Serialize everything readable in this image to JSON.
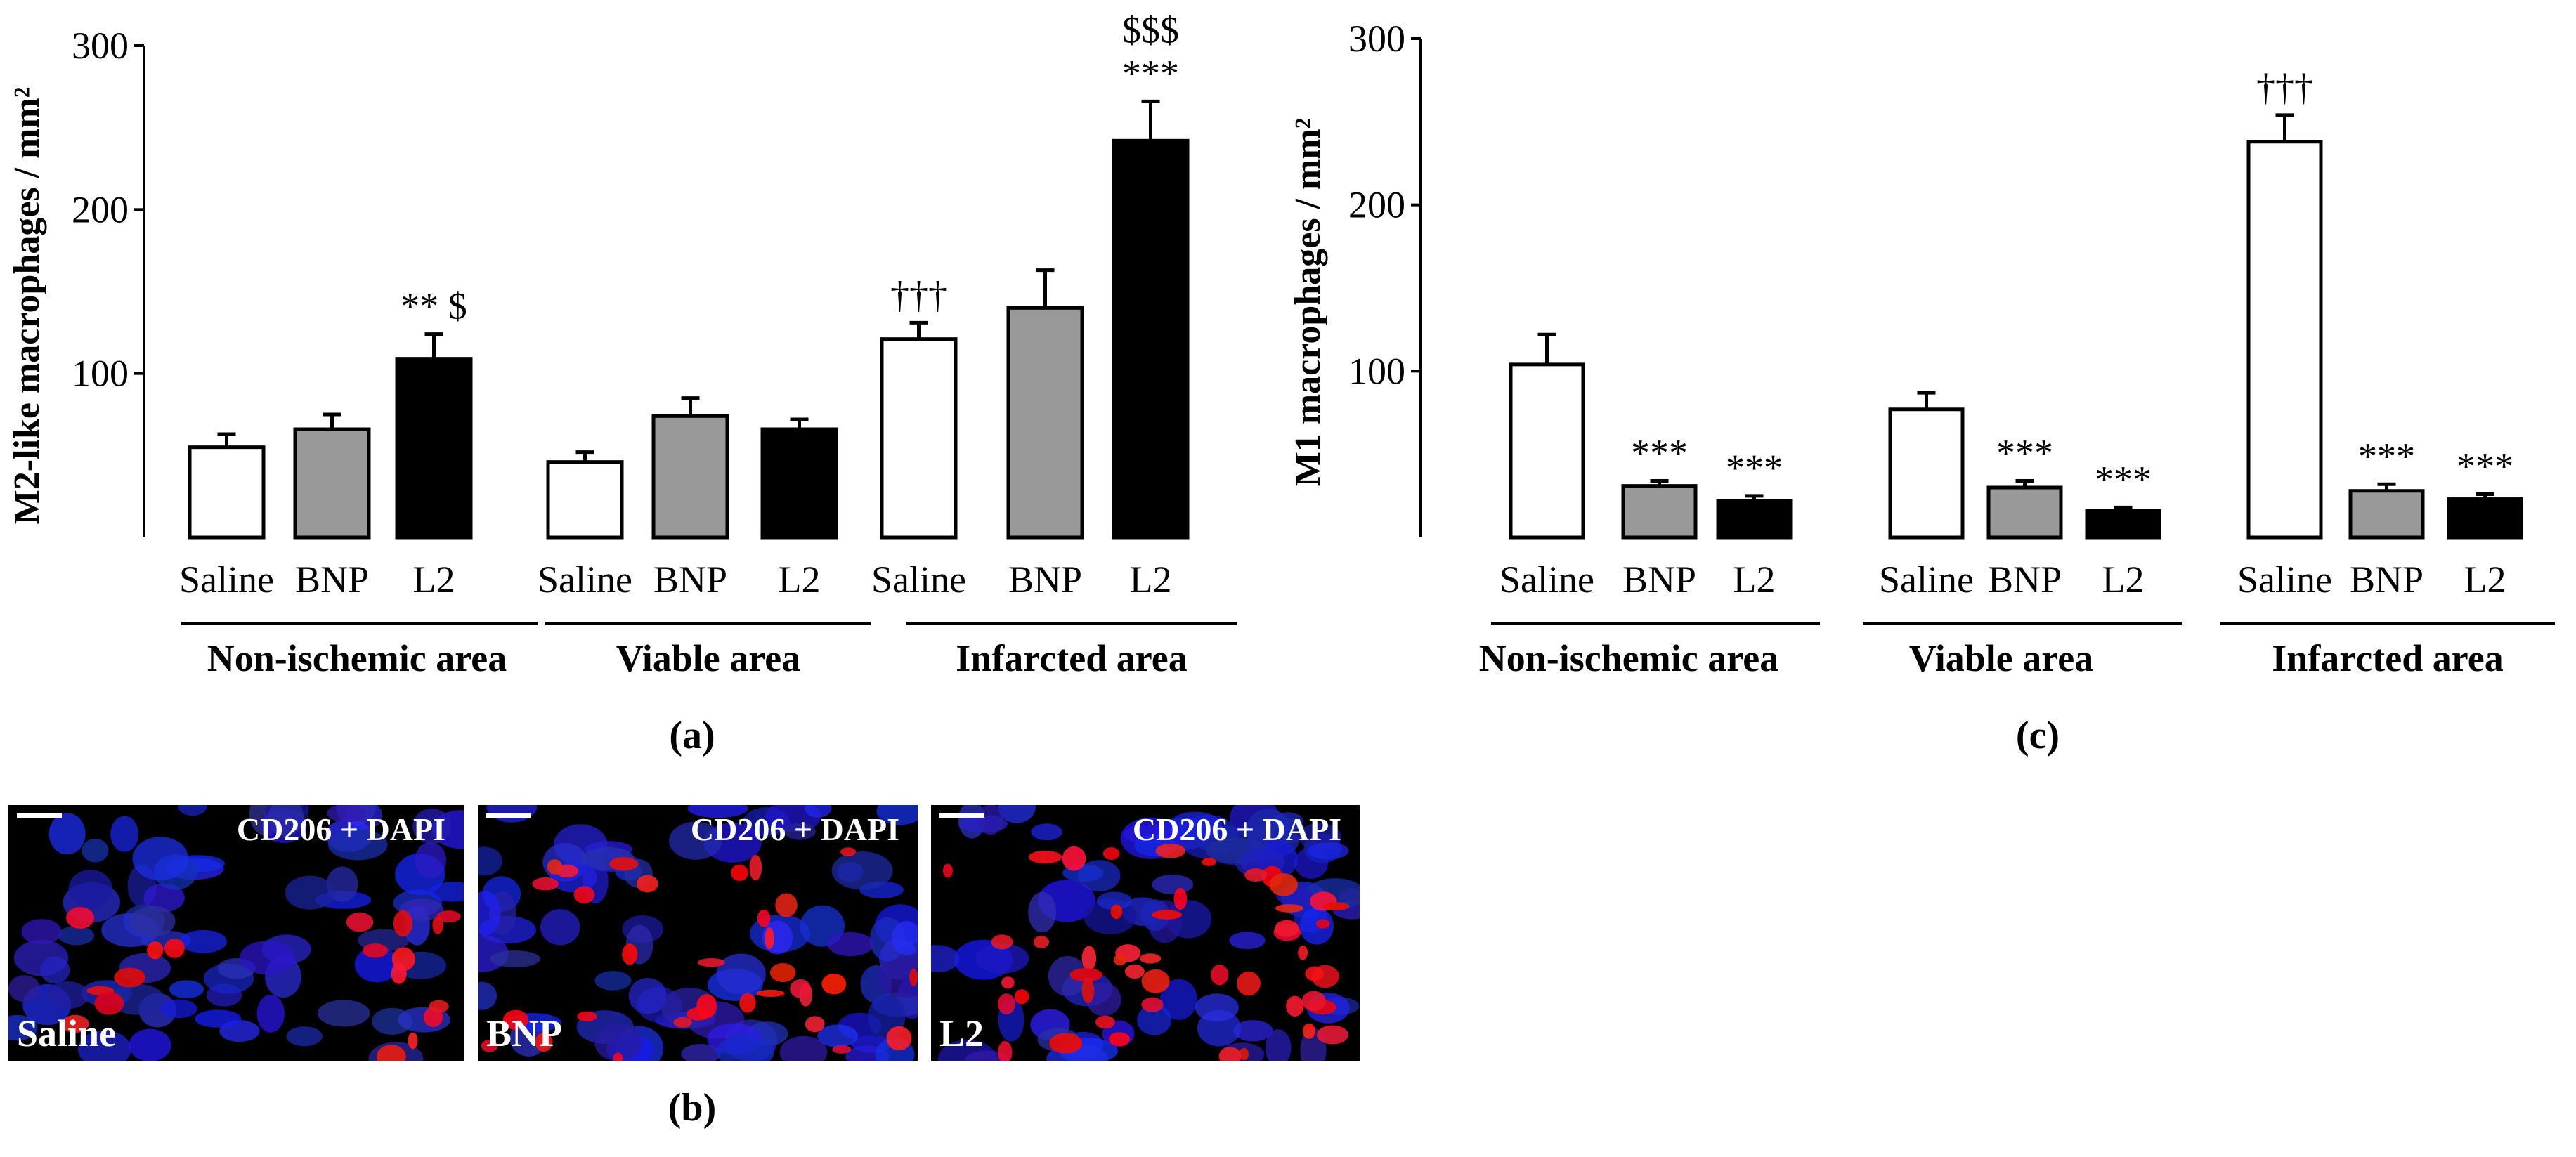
{
  "panel_labels": {
    "a": "(a)",
    "b": "(b)",
    "c": "(c)"
  },
  "bar_colors": {
    "Saline": "#ffffff",
    "BNP": "#999999",
    "L2": "#000000"
  },
  "chart_data": [
    {
      "type": "bar",
      "panel": "(a)",
      "ylabel": "M2-like macrophages / mm²",
      "ylim": [
        0,
        300
      ],
      "yticks": [
        100,
        200,
        300
      ],
      "groups": [
        "Non-ischemic area",
        "Viable area",
        "Infarcted area"
      ],
      "categories": [
        "Saline",
        "BNP",
        "L2"
      ],
      "series": [
        {
          "group": "Non-ischemic area",
          "categories": [
            "Saline",
            "BNP",
            "L2"
          ],
          "values": [
            55,
            66,
            109
          ],
          "errors": [
            8,
            9,
            15
          ],
          "annotations": [
            "",
            "",
            "** $"
          ]
        },
        {
          "group": "Viable area",
          "categories": [
            "Saline",
            "BNP",
            "L2"
          ],
          "values": [
            46,
            74,
            66
          ],
          "errors": [
            6,
            11,
            6
          ],
          "annotations": [
            "",
            "",
            ""
          ]
        },
        {
          "group": "Infarcted area",
          "categories": [
            "Saline",
            "BNP",
            "L2"
          ],
          "values": [
            121,
            140,
            242
          ],
          "errors": [
            10,
            23,
            24
          ],
          "annotations": [
            "†††",
            "",
            "***|$$$"
          ]
        }
      ]
    },
    {
      "type": "bar",
      "panel": "(c)",
      "ylabel": "M1 macrophages / mm²",
      "ylim": [
        0,
        300
      ],
      "yticks": [
        100,
        200,
        300
      ],
      "groups": [
        "Non-ischemic area",
        "Viable area",
        "Infarcted area"
      ],
      "categories": [
        "Saline",
        "BNP",
        "L2"
      ],
      "series": [
        {
          "group": "Non-ischemic area",
          "categories": [
            "Saline",
            "BNP",
            "L2"
          ],
          "values": [
            104,
            31,
            22
          ],
          "errors": [
            18,
            3,
            3
          ],
          "annotations": [
            "",
            "***",
            "***"
          ]
        },
        {
          "group": "Viable area",
          "categories": [
            "Saline",
            "BNP",
            "L2"
          ],
          "values": [
            77,
            30,
            16
          ],
          "errors": [
            10,
            4,
            2
          ],
          "annotations": [
            "",
            "***",
            "***"
          ]
        },
        {
          "group": "Infarcted area",
          "categories": [
            "Saline",
            "BNP",
            "L2"
          ],
          "values": [
            238,
            28,
            23
          ],
          "errors": [
            16,
            4,
            3
          ],
          "annotations": [
            "†††",
            "***",
            "***"
          ]
        }
      ]
    }
  ],
  "micrographs": [
    {
      "stain": "CD206 + DAPI",
      "group": "Saline"
    },
    {
      "stain": "CD206 + DAPI",
      "group": "BNP"
    },
    {
      "stain": "CD206 + DAPI",
      "group": "L2"
    }
  ]
}
